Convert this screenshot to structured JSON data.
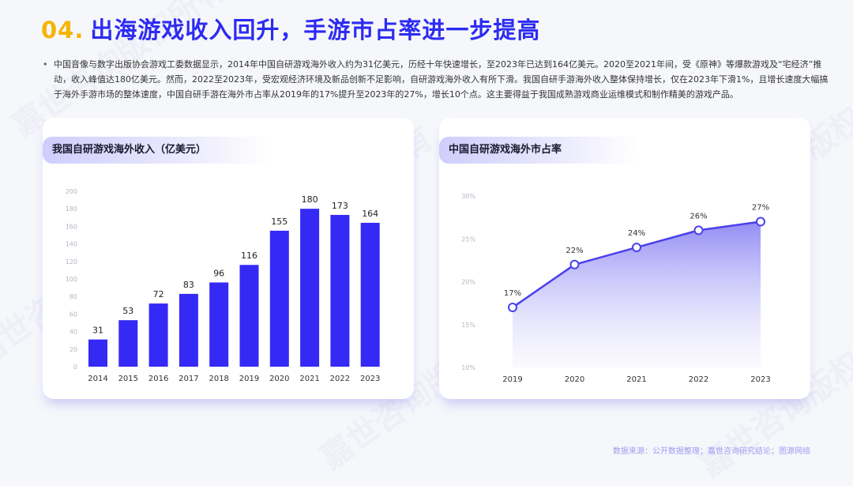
{
  "header": {
    "number": "04.",
    "title": "出海游戏收入回升，手游市占率进一步提高"
  },
  "summary": "中国音像与数字出版协会游戏工委数据显示，2014年中国自研游戏海外收入约为31亿美元，历经十年快速增长，至2023年已达到164亿美元。2020至2021年间，受《原神》等爆款游戏及“宅经济”推动，收入峰值达180亿美元。然而，2022至2023年，受宏观经济环境及新品创新不足影响，自研游戏海外收入有所下滑。我国自研手游海外收入整体保持增长，仅在2023年下滑1%，且增长速度大幅搞于海外手游市场的整体速度，中国自研手游在海外市占率从2019年的17%提升至2023年的27%，增长10个点。这主要得益于我国成熟游戏商业运维模式和制作精美的游戏产品。",
  "watermark": "嘉世咨询版权所有",
  "source": "数据来源：公开数据整理；嘉世咨询研究结论；图源网络",
  "colors": {
    "accent": "#2d2bf2",
    "number": "#f6b400",
    "bar": "#3529f5",
    "line": "#4a40ec"
  },
  "chart_data": [
    {
      "type": "bar",
      "title": "我国自研游戏海外收入（亿美元）",
      "categories": [
        "2014",
        "2015",
        "2016",
        "2017",
        "2018",
        "2019",
        "2020",
        "2021",
        "2022",
        "2023"
      ],
      "values": [
        31,
        53,
        72,
        83,
        96,
        116,
        155,
        180,
        173,
        164
      ],
      "ylim": [
        0,
        200
      ],
      "yticks": [
        "0",
        "20",
        "40",
        "60",
        "80",
        "100",
        "120",
        "140",
        "160",
        "180",
        "200"
      ],
      "grid": false
    },
    {
      "type": "area",
      "title": "中国自研游戏海外市占率",
      "categories": [
        "2019",
        "2020",
        "2021",
        "2022",
        "2023"
      ],
      "values": [
        17,
        22,
        24,
        26,
        27
      ],
      "labels": [
        "17%",
        "22%",
        "24%",
        "26%",
        "27%"
      ],
      "ylim": [
        10,
        30
      ],
      "yticks": [
        "10%",
        "15%",
        "20%",
        "25%",
        "30%"
      ],
      "grid": false
    }
  ]
}
